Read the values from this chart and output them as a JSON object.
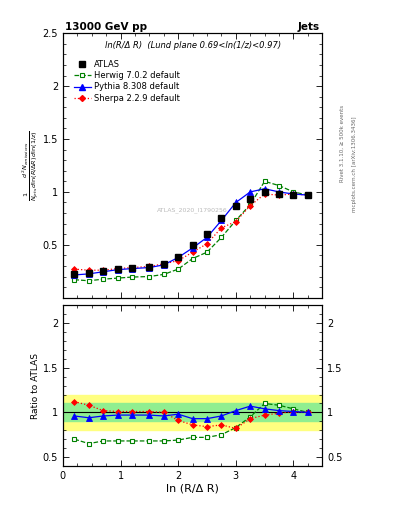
{
  "title_top": "13000 GeV pp",
  "title_right": "Jets",
  "annotation": "ln(R/Δ R)  (Lund plane 0.69<ln(1/z)<0.97)",
  "watermark": "ATLAS_2020_I1790256",
  "rivet_label": "Rivet 3.1.10, ≥ 500k events",
  "arxiv_label": "mcplots.cern.ch [arXiv:1306.3436]",
  "xlabel": "ln (R/Δ R)",
  "ylabel_ratio": "Ratio to ATLAS",
  "xlim": [
    0,
    4.5
  ],
  "ylim_main": [
    0.0,
    2.5
  ],
  "ylim_ratio": [
    0.4,
    2.2
  ],
  "x_atlas": [
    0.2,
    0.45,
    0.7,
    0.95,
    1.2,
    1.5,
    1.75,
    2.0,
    2.25,
    2.5,
    2.75,
    3.0,
    3.25,
    3.5,
    3.75,
    4.0,
    4.25
  ],
  "y_atlas": [
    0.22,
    0.235,
    0.25,
    0.27,
    0.28,
    0.29,
    0.32,
    0.38,
    0.5,
    0.6,
    0.75,
    0.87,
    0.93,
    1.0,
    0.98,
    0.97,
    0.97
  ],
  "yerr_atlas_lo": [
    0.01,
    0.01,
    0.01,
    0.01,
    0.01,
    0.01,
    0.01,
    0.01,
    0.01,
    0.01,
    0.02,
    0.02,
    0.02,
    0.02,
    0.02,
    0.02,
    0.02
  ],
  "yerr_atlas_hi": [
    0.01,
    0.01,
    0.01,
    0.01,
    0.01,
    0.01,
    0.01,
    0.01,
    0.01,
    0.01,
    0.02,
    0.02,
    0.02,
    0.02,
    0.02,
    0.02,
    0.02
  ],
  "x_herwig": [
    0.2,
    0.45,
    0.7,
    0.95,
    1.2,
    1.5,
    1.75,
    2.0,
    2.25,
    2.5,
    2.75,
    3.0,
    3.25,
    3.5,
    3.75,
    4.0,
    4.25
  ],
  "y_herwig": [
    0.17,
    0.16,
    0.175,
    0.185,
    0.195,
    0.2,
    0.22,
    0.27,
    0.37,
    0.43,
    0.57,
    0.73,
    0.88,
    1.1,
    1.06,
    1.0,
    0.97
  ],
  "x_pythia": [
    0.2,
    0.45,
    0.7,
    0.95,
    1.2,
    1.5,
    1.75,
    2.0,
    2.25,
    2.5,
    2.75,
    3.0,
    3.25,
    3.5,
    3.75,
    4.0,
    4.25
  ],
  "y_pythia": [
    0.215,
    0.225,
    0.245,
    0.265,
    0.275,
    0.285,
    0.31,
    0.38,
    0.47,
    0.57,
    0.73,
    0.9,
    1.0,
    1.03,
    1.0,
    0.98,
    0.97
  ],
  "x_sherpa": [
    0.2,
    0.45,
    0.7,
    0.95,
    1.2,
    1.5,
    1.75,
    2.0,
    2.25,
    2.5,
    2.75,
    3.0,
    3.25,
    3.5,
    3.75,
    4.0,
    4.25
  ],
  "y_sherpa": [
    0.27,
    0.26,
    0.26,
    0.275,
    0.285,
    0.295,
    0.32,
    0.35,
    0.43,
    0.51,
    0.66,
    0.72,
    0.87,
    0.98,
    0.97,
    0.98,
    0.97
  ],
  "ratio_herwig": [
    0.7,
    0.65,
    0.68,
    0.68,
    0.68,
    0.68,
    0.68,
    0.69,
    0.72,
    0.72,
    0.75,
    0.83,
    0.95,
    1.1,
    1.08,
    1.04,
    1.0
  ],
  "ratio_pythia": [
    0.96,
    0.94,
    0.96,
    0.97,
    0.97,
    0.97,
    0.96,
    0.98,
    0.93,
    0.93,
    0.96,
    1.02,
    1.07,
    1.04,
    1.02,
    1.01,
    1.0
  ],
  "ratio_sherpa": [
    1.12,
    1.08,
    1.02,
    1.01,
    1.01,
    1.01,
    1.0,
    0.91,
    0.86,
    0.84,
    0.86,
    0.82,
    0.93,
    0.97,
    0.99,
    1.01,
    1.0
  ],
  "band_inner_lo": 0.9,
  "band_inner_hi": 1.1,
  "band_outer_lo": 0.8,
  "band_outer_hi": 1.2,
  "color_atlas": "#000000",
  "color_herwig": "#008000",
  "color_pythia": "#0000ff",
  "color_sherpa": "#ff0000",
  "color_band_inner": "#90ee90",
  "color_band_outer": "#ffff80",
  "atlas_label": "ATLAS",
  "herwig_label": "Herwig 7.0.2 default",
  "pythia_label": "Pythia 8.308 default",
  "sherpa_label": "Sherpa 2.2.9 default"
}
